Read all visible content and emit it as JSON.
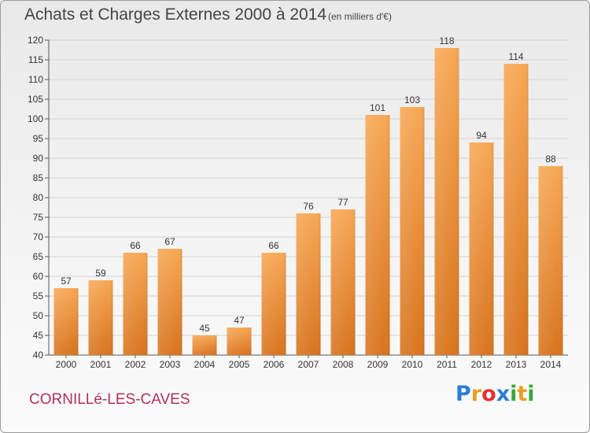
{
  "header": {
    "title": "Achats et Charges Externes 2000 à 2014",
    "unit": "(en milliers d'€)"
  },
  "footer": {
    "city": "CORNILLé-LES-CAVES",
    "logo": {
      "letters": [
        "P",
        "r",
        "o",
        "x",
        "i",
        "t",
        "i"
      ],
      "colors": [
        "#2a7fd4",
        "#e8a020",
        "#e83030",
        "#2a7fd4",
        "#3aa83a",
        "#e8a020",
        "#3aa83a"
      ]
    }
  },
  "chart_data": {
    "type": "bar",
    "categories": [
      "2000",
      "2001",
      "2002",
      "2003",
      "2004",
      "2005",
      "2006",
      "2007",
      "2008",
      "2009",
      "2010",
      "2011",
      "2012",
      "2013",
      "2014"
    ],
    "values": [
      57,
      59,
      66,
      67,
      45,
      47,
      66,
      76,
      77,
      101,
      103,
      118,
      94,
      114,
      88
    ],
    "yticks": [
      40,
      45,
      50,
      55,
      60,
      65,
      70,
      75,
      80,
      85,
      90,
      95,
      100,
      105,
      110,
      115,
      120
    ],
    "ylim": [
      40,
      120
    ],
    "grid": true,
    "bar_color": "#f0903a"
  }
}
